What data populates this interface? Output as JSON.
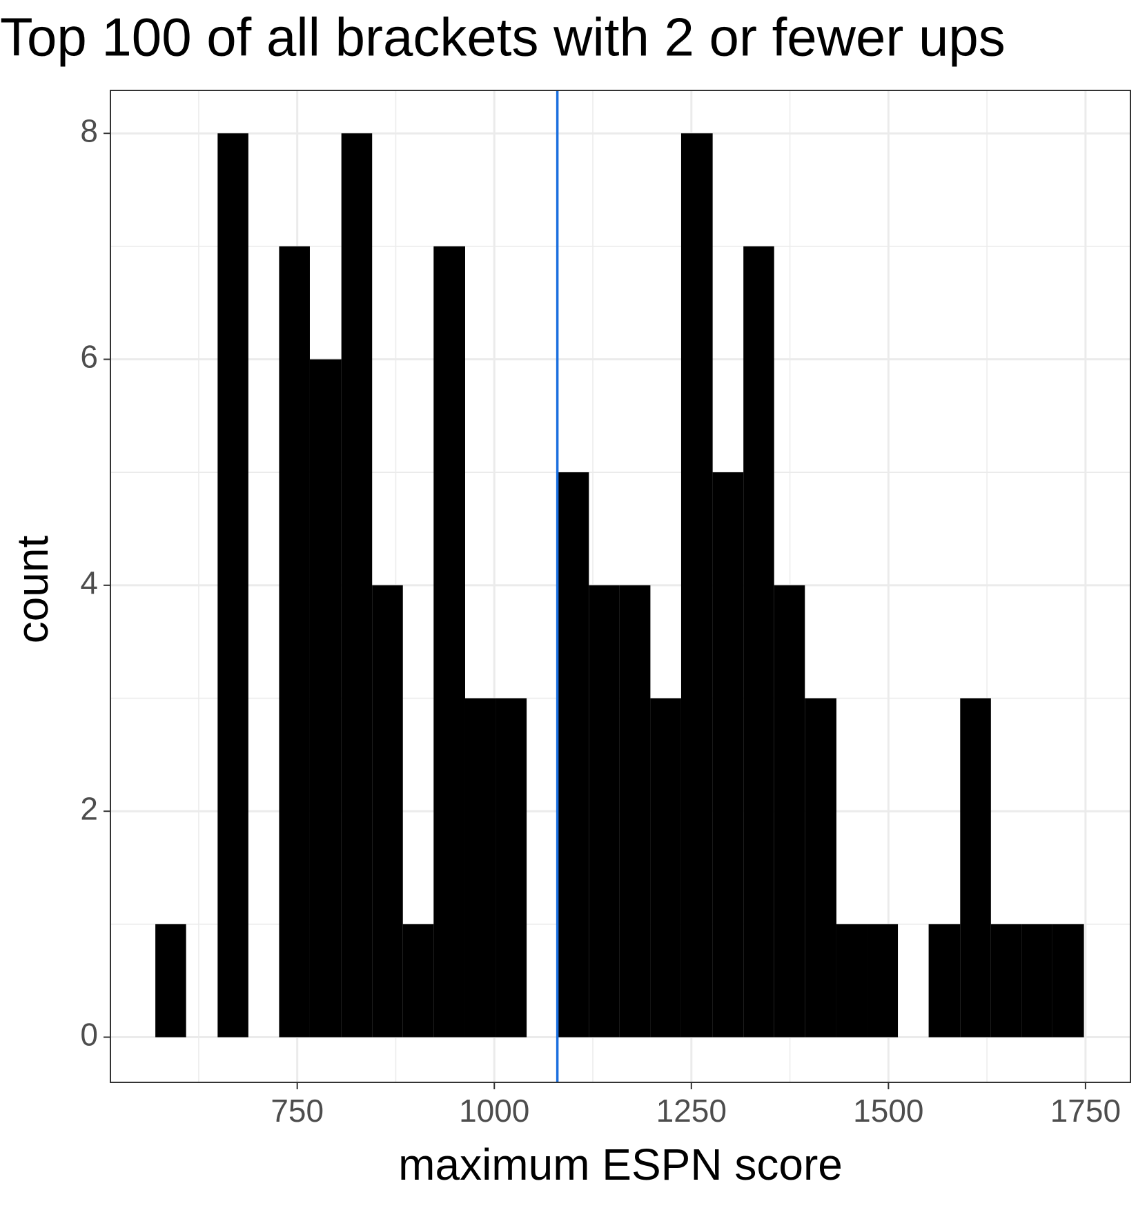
{
  "chart_data": {
    "type": "histogram",
    "title": "Top 100 of all brackets with 2 or fewer ups",
    "x_label": "maximum ESPN score",
    "y_label": "count",
    "bins": [
      570,
      609,
      649,
      688,
      727,
      766,
      806,
      845,
      884,
      923,
      963,
      1002,
      1041,
      1080,
      1120,
      1159,
      1198,
      1237,
      1277,
      1316,
      1355,
      1394,
      1434,
      1473,
      1512,
      1551,
      1591,
      1630,
      1669,
      1708,
      1748
    ],
    "values": [
      1,
      0,
      8,
      0,
      7,
      6,
      8,
      4,
      1,
      7,
      3,
      3,
      0,
      5,
      4,
      4,
      3,
      8,
      5,
      7,
      4,
      3,
      1,
      1,
      0,
      1,
      3,
      1,
      1,
      1
    ],
    "color": "#000000",
    "vline": {
      "value": 1080,
      "color": "#1a6fdf"
    },
    "xlim": [
      513,
      1807
    ],
    "ylim": [
      -0.4,
      8.38
    ],
    "xticks": [
      750,
      1000,
      1250,
      1500,
      1750
    ],
    "yticks": [
      0,
      2,
      4,
      6,
      8
    ],
    "x_minor_grid": [
      625,
      875,
      1125,
      1375,
      1625
    ],
    "y_minor_grid": [
      1,
      3,
      5,
      7
    ],
    "grid": true
  }
}
